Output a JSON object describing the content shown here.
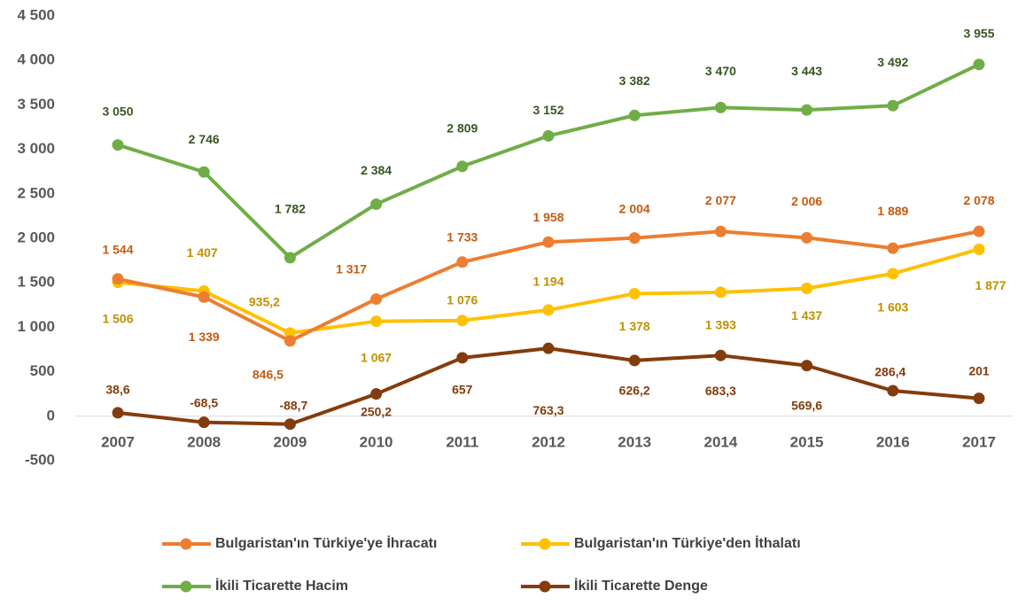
{
  "chart_data": {
    "type": "line",
    "categories": [
      "2007",
      "2008",
      "2009",
      "2010",
      "2011",
      "2012",
      "2013",
      "2014",
      "2015",
      "2016",
      "2017"
    ],
    "ylim": [
      -500,
      4500
    ],
    "yticks": [
      -500,
      0,
      500,
      {
        "value": 1000,
        "label": "1 000"
      },
      {
        "value": 1500,
        "label": "1 500"
      },
      {
        "value": 2000,
        "label": "2 000"
      },
      {
        "value": 2500,
        "label": "2 500"
      },
      {
        "value": 3000,
        "label": "3 000"
      },
      {
        "value": 3500,
        "label": "3 500"
      },
      {
        "value": 4000,
        "label": "4 000"
      },
      {
        "value": 4500,
        "label": "4 500"
      }
    ],
    "grid": false,
    "legend": "bottom",
    "series": [
      {
        "name": "Bulgaristan'ın Türkiye'ye İhracatı",
        "color": "#ED7D31",
        "label_color": "#C55A11",
        "values": [
          1544,
          1339,
          846.5,
          1317,
          1733,
          1958,
          2004,
          2077,
          2006,
          1889,
          2078
        ],
        "value_labels": [
          "1 544",
          "1 339",
          "846,5",
          "1 317",
          "1 733",
          "1 958",
          "2 004",
          "2 077",
          "2 006",
          "1 889",
          "2 078"
        ]
      },
      {
        "name": "Bulgaristan'ın Türkiye'den İthalatı",
        "color": "#FFC000",
        "label_color": "#BF9000",
        "values": [
          1506,
          1407,
          935.2,
          1067,
          1076,
          1194,
          1378,
          1393,
          1437,
          1603,
          1877
        ],
        "value_labels": [
          "1 506",
          "1 407",
          "935,2",
          "1 067",
          "1 076",
          "1 194",
          "1 378",
          "1 393",
          "1 437",
          "1 603",
          "1 877"
        ]
      },
      {
        "name": "İkili Ticarette Hacim",
        "color": "#70AD47",
        "label_color": "#375623",
        "values": [
          3050,
          2746,
          1782,
          2384,
          2809,
          3152,
          3382,
          3470,
          3443,
          3492,
          3955
        ],
        "value_labels": [
          "3 050",
          "2 746",
          "1 782",
          "2 384",
          "2 809",
          "3 152",
          "3 382",
          "3 470",
          "3 443",
          "3 492",
          "3 955"
        ]
      },
      {
        "name": "İkili Ticarette Denge",
        "color": "#843C0C",
        "label_color": "#843C0C",
        "values": [
          38.6,
          -68.5,
          -88.7,
          250.2,
          657,
          763.3,
          626.2,
          683.3,
          569.6,
          286.4,
          201
        ],
        "value_labels": [
          "38,6",
          "-68,5",
          "-88,7",
          "250,2",
          "657",
          "763,3",
          "626,2",
          "683,3",
          "569,6",
          "286,4",
          "201"
        ]
      }
    ]
  }
}
